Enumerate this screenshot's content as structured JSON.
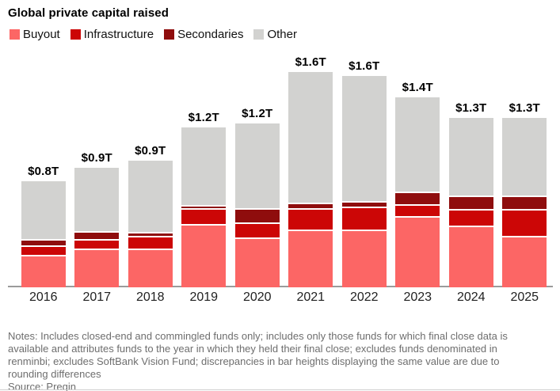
{
  "title": "Global private capital raised",
  "legend": [
    {
      "label": "Buyout",
      "color": "#fc6665"
    },
    {
      "label": "Infrastructure",
      "color": "#cc0606"
    },
    {
      "label": "Secondaries",
      "color": "#8f0d0d"
    },
    {
      "label": "Other",
      "color": "#d2d2d0"
    }
  ],
  "chart_data": {
    "type": "bar",
    "stacked": true,
    "title": "Global private capital raised",
    "unit": "trillions of US dollars",
    "categories": [
      "2016",
      "2017",
      "2018",
      "2019",
      "2020",
      "2021",
      "2022",
      "2023",
      "2024",
      "2025"
    ],
    "series": [
      {
        "name": "Buyout",
        "color": "#fc6665",
        "values": [
          0.24,
          0.29,
          0.29,
          0.47,
          0.37,
          0.43,
          0.43,
          0.53,
          0.46,
          0.38
        ]
      },
      {
        "name": "Infrastructure",
        "color": "#cc0606",
        "values": [
          0.07,
          0.07,
          0.09,
          0.12,
          0.11,
          0.16,
          0.17,
          0.09,
          0.12,
          0.2
        ]
      },
      {
        "name": "Secondaries",
        "color": "#8f0d0d",
        "values": [
          0.05,
          0.06,
          0.03,
          0.02,
          0.11,
          0.04,
          0.04,
          0.09,
          0.1,
          0.1
        ]
      },
      {
        "name": "Other",
        "color": "#d2d2d0",
        "values": [
          0.43,
          0.47,
          0.53,
          0.58,
          0.63,
          0.97,
          0.93,
          0.7,
          0.58,
          0.58
        ]
      }
    ],
    "total_labels": [
      "$0.8T",
      "$0.9T",
      "$0.9T",
      "$1.2T",
      "$1.2T",
      "$1.6T",
      "$1.6T",
      "$1.4T",
      "$1.3T",
      "$1.3T"
    ],
    "xlabel": "",
    "ylabel": "",
    "ylim": [
      0,
      1.75
    ],
    "grid": false,
    "legend_position": "top"
  },
  "notes": {
    "text": "Notes: Includes closed-end and commingled funds only; includes only those funds for which final close data is available and attributes funds to the year in which they held their final close; excludes funds denominated in renminbi; excludes SoftBank Vision Fund; discrepancies in bar heights displaying the same value are due to rounding differences",
    "source": "Source: Preqin"
  },
  "colors": {
    "axis": "#9b9b9b",
    "year_label": "#1f1f1f",
    "notes_text": "#6e6e6e",
    "divider": "#cfcfcf"
  }
}
